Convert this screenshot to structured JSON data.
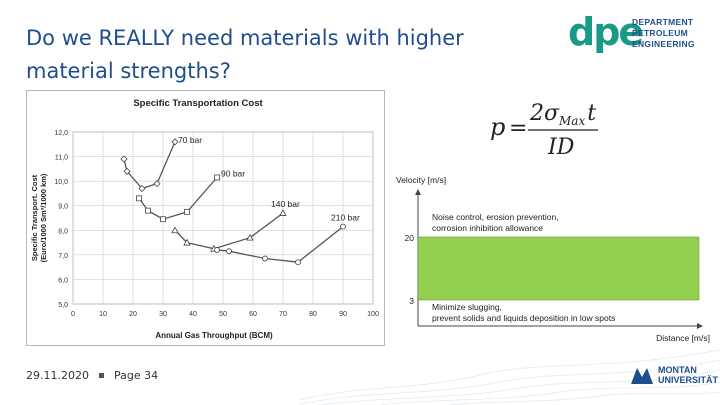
{
  "slide": {
    "title": "Do we REALLY need materials with higher material strengths?",
    "footer_date": "29.11.2020",
    "footer_page": "Page 34"
  },
  "logo": {
    "mark": "dpe",
    "line1": "DEPARTMENT",
    "line2": "PETROLEUM",
    "line3": "ENGINEERING"
  },
  "university_logo": {
    "line1": "MONTAN",
    "line2": "UNIVERSITÄT"
  },
  "formula": {
    "lhs": "p",
    "numerator": "2σ",
    "subscript": "Max",
    "num_tail": "t",
    "denominator": "ID"
  },
  "colors": {
    "title": "#1f4e8c",
    "accent": "#1a9a86",
    "band": "#92d050"
  },
  "chart_data": [
    {
      "type": "line",
      "title": "Specific Transportation Cost",
      "xlabel": "Annual Gas Throughput (BCM)",
      "ylabel": "Specific Transport. Cost",
      "ylabel2": "(Euro/1000 Sm³/1000 km)",
      "xlim": [
        0,
        100
      ],
      "ylim": [
        5.0,
        12.0
      ],
      "x_ticks": [
        "0",
        "10",
        "20",
        "30",
        "40",
        "50",
        "60",
        "70",
        "80",
        "90",
        "100"
      ],
      "y_ticks": [
        "5,0",
        "6,0",
        "7,0",
        "8,0",
        "9,0",
        "10,0",
        "11,0",
        "12,0"
      ],
      "grid": true,
      "series": [
        {
          "name": "70 bar",
          "x": [
            17,
            18,
            23,
            28,
            34
          ],
          "y": [
            10.9,
            10.4,
            9.7,
            9.9,
            11.6
          ]
        },
        {
          "name": "90 bar",
          "x": [
            22,
            25,
            30,
            38,
            48
          ],
          "y": [
            9.3,
            8.8,
            8.45,
            8.75,
            10.15
          ]
        },
        {
          "name": "140 bar",
          "x": [
            34,
            38,
            47,
            59,
            70
          ],
          "y": [
            8.0,
            7.5,
            7.25,
            7.7,
            8.7
          ]
        },
        {
          "name": "210 bar",
          "x": [
            48,
            52,
            64,
            75,
            90
          ],
          "y": [
            7.2,
            7.15,
            6.85,
            6.7,
            8.15
          ]
        }
      ]
    },
    {
      "type": "area",
      "ylabel": "Velocity [m/s]",
      "xlabel": "Distance [m/s]",
      "y_ticks": [
        "20",
        "3"
      ],
      "upper_text_1": "Noise control, erosion prevention,",
      "upper_text_2": "corrosion inhibition allowance",
      "lower_text_1": "Minimize slugging,",
      "lower_text_2": "prevent solids and liquids deposition in low spots"
    }
  ]
}
